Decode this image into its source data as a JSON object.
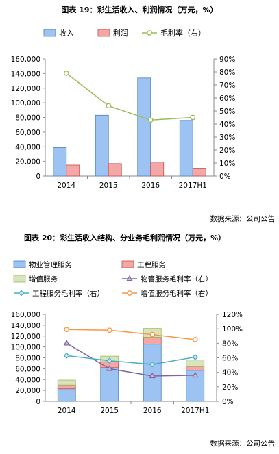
{
  "figure1": {
    "title": "图表 19：彩生活收入、利润情况（万元，%）",
    "source": "数据来源：公司公告",
    "colors": {
      "revenue": "#9dc3f3",
      "revenue_stroke": "#4f81bd",
      "profit": "#f4a7a7",
      "profit_stroke": "#c0504d",
      "margin": "#9bbb59"
    },
    "chart_data": {
      "type": "bar",
      "categories": [
        "2014",
        "2015",
        "2016",
        "2017H1"
      ],
      "series": [
        {
          "name": "收入",
          "type": "bar",
          "axis": "left",
          "values": [
            39000,
            83000,
            134000,
            76000
          ]
        },
        {
          "name": "利润",
          "type": "bar",
          "axis": "left",
          "values": [
            15000,
            17000,
            19000,
            10000
          ]
        },
        {
          "name": "毛利率（右）",
          "type": "line",
          "axis": "right",
          "values": [
            79,
            54,
            43,
            45
          ]
        }
      ],
      "ylim_left": [
        0,
        160000
      ],
      "yticks_left": [
        "0",
        "20,000",
        "40,000",
        "60,000",
        "80,000",
        "100,000",
        "120,000",
        "140,000",
        "160,000"
      ],
      "ylim_right": [
        0,
        90
      ],
      "yticks_right": [
        "0%",
        "10%",
        "20%",
        "30%",
        "40%",
        "50%",
        "60%",
        "70%",
        "80%",
        "90%"
      ],
      "legend": "top",
      "grid": false
    }
  },
  "figure2": {
    "title": "图表 20：彩生活收入结构、分业务毛利润情况（万元，%）",
    "source": "数据来源：公司公告",
    "colors": {
      "property": "#9dc3f3",
      "property_stroke": "#4f81bd",
      "engineering": "#f4a7a7",
      "engineering_stroke": "#c0504d",
      "value_added": "#d7e4bd",
      "value_added_stroke": "#9bbb59",
      "property_margin": "#8064a2",
      "engineering_margin": "#4bacc6",
      "value_added_margin": "#f79646"
    },
    "chart_data": {
      "type": "bar",
      "stacked": true,
      "categories": [
        "2014",
        "2015",
        "2016",
        "2017H1"
      ],
      "series": [
        {
          "name": "物业管理服务",
          "type": "bar",
          "axis": "left",
          "values": [
            23000,
            62000,
            105000,
            57000
          ]
        },
        {
          "name": "工程服务",
          "type": "bar",
          "axis": "left",
          "values": [
            7000,
            11000,
            13000,
            7000
          ]
        },
        {
          "name": "增值服务",
          "type": "bar",
          "axis": "left",
          "values": [
            9000,
            10000,
            16000,
            12000
          ]
        },
        {
          "name": "物管服务毛利率（右）",
          "type": "line",
          "axis": "right",
          "values": [
            80,
            45,
            35,
            36
          ]
        },
        {
          "name": "工程服务毛利率（右）",
          "type": "line",
          "axis": "right",
          "values": [
            63,
            56,
            51,
            61
          ]
        },
        {
          "name": "增值服务毛利率（右）",
          "type": "line",
          "axis": "right",
          "values": [
            99,
            98,
            92,
            85
          ]
        }
      ],
      "ylim_left": [
        0,
        160000
      ],
      "yticks_left": [
        "0",
        "20,000",
        "40,000",
        "60,000",
        "80,000",
        "100,000",
        "120,000",
        "140,000",
        "160,000"
      ],
      "ylim_right": [
        0,
        120
      ],
      "yticks_right": [
        "0%",
        "20%",
        "40%",
        "60%",
        "80%",
        "100%",
        "120%"
      ],
      "legend": "top",
      "grid": false
    }
  }
}
